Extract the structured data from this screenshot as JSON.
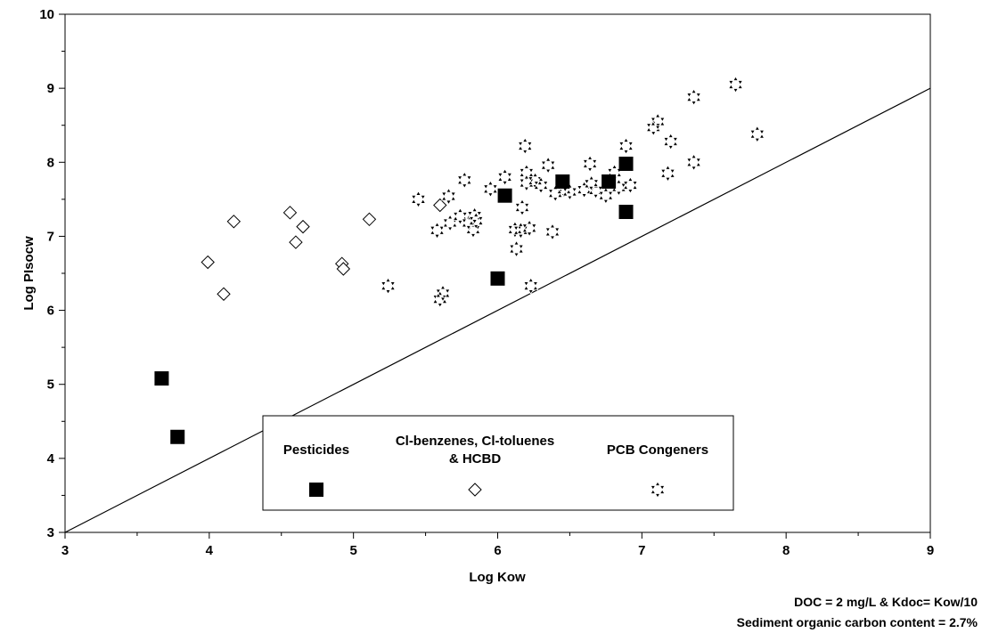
{
  "chart_data": {
    "type": "scatter",
    "title": "",
    "xlabel": "Log Kow",
    "ylabel": "Log PIsocw",
    "xlim": [
      3,
      9
    ],
    "ylim": [
      3,
      10
    ],
    "xticks": [
      "3",
      "4",
      "5",
      "6",
      "7",
      "8",
      "9"
    ],
    "yticks": [
      "3",
      "4",
      "5",
      "6",
      "7",
      "8",
      "9",
      "10"
    ],
    "grid": false,
    "legend_position": "bottom-center",
    "notes": [
      "DOC = 2 mg/L & Kdoc= Kow/10",
      "Sediment organic carbon content = 2.7%"
    ],
    "reference_line": {
      "x": [
        3,
        9
      ],
      "y": [
        3,
        9
      ]
    },
    "series": [
      {
        "name": "Pesticides",
        "marker": "filled-square",
        "color": "#000000",
        "points": [
          [
            3.67,
            5.08
          ],
          [
            3.78,
            4.29
          ],
          [
            6.0,
            6.43
          ],
          [
            6.05,
            7.55
          ],
          [
            6.45,
            7.74
          ],
          [
            6.77,
            7.74
          ],
          [
            6.89,
            7.98
          ],
          [
            6.89,
            7.33
          ]
        ]
      },
      {
        "name": "Cl-benzenes, Cl-toluenes\n& HCBD",
        "marker": "open-diamond",
        "color": "#000000",
        "points": [
          [
            3.99,
            6.65
          ],
          [
            4.1,
            6.22
          ],
          [
            4.17,
            7.2
          ],
          [
            4.56,
            7.32
          ],
          [
            4.6,
            6.92
          ],
          [
            4.65,
            7.13
          ],
          [
            4.92,
            6.63
          ],
          [
            4.93,
            6.56
          ],
          [
            5.11,
            7.23
          ],
          [
            5.6,
            7.42
          ]
        ]
      },
      {
        "name": "PCB Congeners",
        "marker": "six-point-star",
        "color": "#000000",
        "points": [
          [
            5.24,
            6.33
          ],
          [
            5.45,
            7.5
          ],
          [
            5.58,
            7.08
          ],
          [
            5.6,
            6.15
          ],
          [
            5.62,
            6.23
          ],
          [
            5.66,
            7.54
          ],
          [
            5.67,
            7.18
          ],
          [
            5.74,
            7.27
          ],
          [
            5.77,
            7.76
          ],
          [
            5.8,
            7.18
          ],
          [
            5.83,
            7.09
          ],
          [
            5.84,
            7.28
          ],
          [
            5.85,
            7.21
          ],
          [
            5.95,
            7.64
          ],
          [
            6.05,
            7.8
          ],
          [
            6.12,
            7.09
          ],
          [
            6.13,
            6.83
          ],
          [
            6.16,
            7.08
          ],
          [
            6.17,
            7.39
          ],
          [
            6.19,
            8.22
          ],
          [
            6.2,
            7.86
          ],
          [
            6.2,
            7.72
          ],
          [
            6.22,
            7.11
          ],
          [
            6.23,
            6.33
          ],
          [
            6.26,
            7.75
          ],
          [
            6.3,
            7.69
          ],
          [
            6.35,
            7.96
          ],
          [
            6.38,
            7.06
          ],
          [
            6.4,
            7.58
          ],
          [
            6.46,
            7.63
          ],
          [
            6.5,
            7.6
          ],
          [
            6.6,
            7.63
          ],
          [
            6.64,
            7.98
          ],
          [
            6.65,
            7.71
          ],
          [
            6.68,
            7.62
          ],
          [
            6.75,
            7.55
          ],
          [
            6.81,
            7.86
          ],
          [
            6.84,
            7.66
          ],
          [
            6.89,
            8.22
          ],
          [
            6.92,
            7.69
          ],
          [
            7.08,
            8.47
          ],
          [
            7.11,
            8.55
          ],
          [
            7.18,
            7.85
          ],
          [
            7.2,
            8.28
          ],
          [
            7.36,
            8.0
          ],
          [
            7.36,
            8.88
          ],
          [
            7.65,
            9.05
          ],
          [
            7.8,
            8.38
          ]
        ]
      }
    ]
  }
}
